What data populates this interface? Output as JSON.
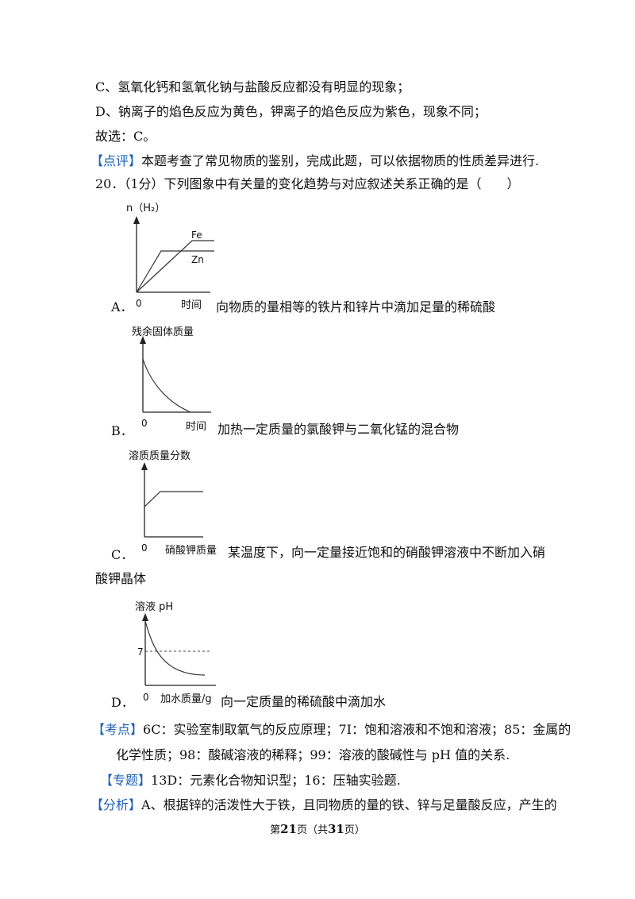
{
  "lines": {
    "c": "C、氢氧化钙和氢氧化钠与盐酸反应都没有明显的现象；",
    "d": "D、钠离子的焰色反应为黄色，钾离子的焰色反应为紫色，现象不同；",
    "answer": "故选：C。",
    "comment_tag": "【点评】",
    "comment": "本题考查了常见物质的鉴别，完成此题，可以依据物质的性质差异进行.",
    "question": "20．（1分）下列图象中有关量的变化趋势与对应叙述关系正确的是（　　）"
  },
  "graphs": {
    "a": {
      "ylabel": "n（H₂）",
      "xlabel": "时间",
      "origin": "0",
      "line1": "Fe",
      "line2": "Zn"
    },
    "b": {
      "ylabel": "残余固体质量",
      "xlabel": "时间",
      "origin": "0"
    },
    "c": {
      "ylabel": "溶质质量分数",
      "xlabel": "硝酸钾质量",
      "origin": "0"
    },
    "d": {
      "ylabel": "溶液 pH",
      "xlabel": "加水质量/g",
      "origin": "0",
      "ref": "7"
    }
  },
  "options": {
    "a_letter": "A．",
    "a_text": "向物质的量相等的铁片和锌片中滴加足量的稀硫酸",
    "b_letter": "B．",
    "b_text": "加热一定质量的氯酸钾与二氧化锰的混合物",
    "c_letter": "C．",
    "c_text": "某温度下，向一定量接近饱和的硝酸钾溶液中不断加入硝",
    "c_text2": "酸钾晶体",
    "d_letter": "D．",
    "d_text": "向一定质量的稀硫酸中滴加水"
  },
  "analysis": {
    "kaodian_tag": "【考点】",
    "kaodian": "6C：实验室制取氧气的反应原理；7I：饱和溶液和不饱和溶液；85：金属的",
    "kaodian2": "化学性质；98：酸碱溶液的稀释；99：溶液的酸碱性与 pH 值的关系.",
    "zhuanti_tag": "【专题】",
    "zhuanti": "13D：元素化合物知识型；16：压轴实验题.",
    "fenxi_tag": "【分析】",
    "fenxi": "A、根据锌的活泼性大于铁，且同物质的量的铁、锌与足量酸反应，产生的"
  },
  "footer": {
    "pre": "第",
    "page": "21",
    "mid": "页（共",
    "total": "31",
    "post": "页）"
  }
}
